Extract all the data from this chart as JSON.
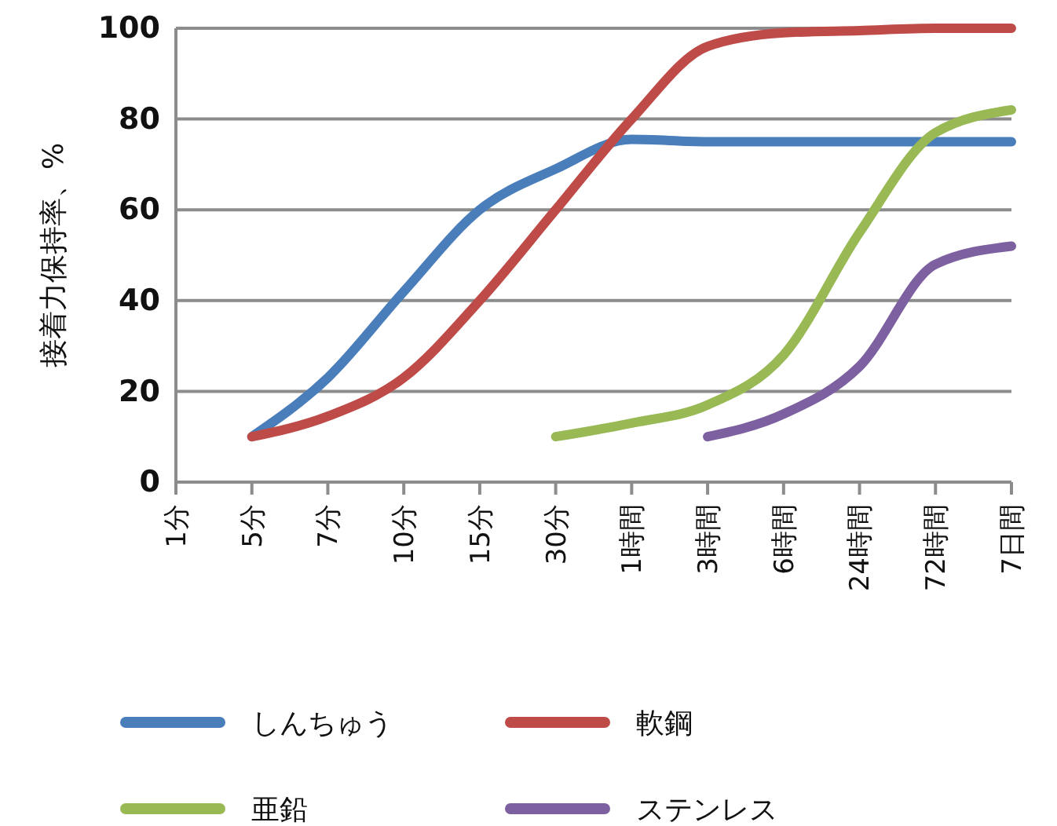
{
  "chart_data": {
    "type": "line",
    "ylabel": "接着力保持率、%",
    "categories": [
      "1分",
      "5分",
      "7分",
      "10分",
      "15分",
      "30分",
      "1時間",
      "3時間",
      "6時間",
      "24時間",
      "72時間",
      "7日間"
    ],
    "ylim": [
      0,
      100
    ],
    "yticks": [
      0,
      20,
      40,
      60,
      80,
      100
    ],
    "grid": "y",
    "legend": "bottom",
    "series": [
      {
        "name": "しんちゅう",
        "color": "#4a7ebb",
        "values": [
          null,
          10,
          23,
          42,
          60,
          69,
          75.5,
          75,
          75,
          75,
          75,
          75
        ]
      },
      {
        "name": "軟鋼",
        "color": "#be4b48",
        "values": [
          null,
          10,
          14.5,
          23,
          40,
          60,
          80,
          96,
          99,
          99.5,
          100,
          100
        ]
      },
      {
        "name": "亜鉛",
        "color": "#98b954",
        "values": [
          null,
          null,
          null,
          null,
          null,
          10,
          13,
          17,
          28,
          55,
          77,
          82
        ]
      },
      {
        "name": "ステンレス",
        "color": "#7d60a0",
        "values": [
          null,
          null,
          null,
          null,
          null,
          null,
          null,
          10,
          15,
          25.5,
          48,
          52
        ]
      }
    ]
  }
}
